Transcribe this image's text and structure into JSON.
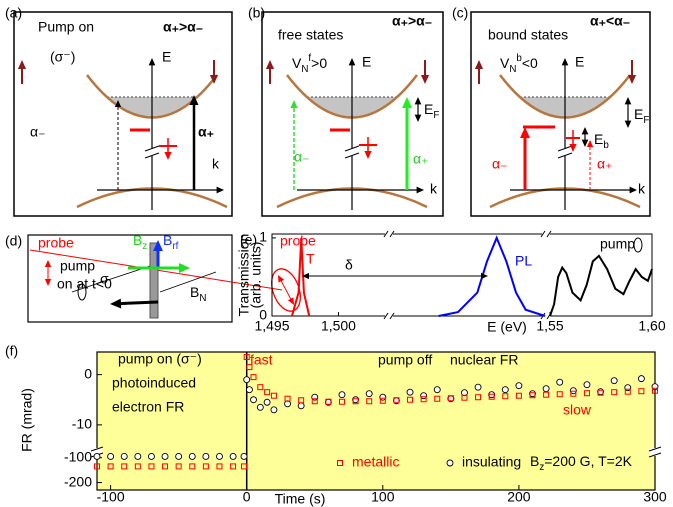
{
  "panels": [
    {
      "label": "(a)",
      "title": "Pump on",
      "condition": "α₊>α₋",
      "polarization": "(σ⁻)",
      "axis_e": "E",
      "axis_k": "k",
      "alpha_minus": "α₋",
      "alpha_plus": "α₊"
    },
    {
      "label": "(b)",
      "title": "free states",
      "condition": "α₊>α₋",
      "potential": {
        "t": "V",
        "sub": "N",
        "sup": "f",
        "rest": ">0"
      },
      "axis_e": "E",
      "axis_k": "k",
      "fermi": {
        "t": "E",
        "sub": "F"
      },
      "alpha_minus": "α₋",
      "alpha_plus": "α₊"
    },
    {
      "label": "(c)",
      "title": "bound states",
      "condition": "α₊<α₋",
      "potential": {
        "t": "V",
        "sub": "N",
        "sup": "b",
        "rest": "<0"
      },
      "axis_e": "E",
      "axis_k": "k",
      "fermi": {
        "t": "E",
        "sub": "F"
      },
      "binding": {
        "t": "E",
        "sub": "b"
      },
      "alpha_minus": "α₋",
      "alpha_plus": "α₊"
    },
    {
      "label": "(d)",
      "probe": "probe",
      "pump": "pump",
      "pump_time": "on at t<0",
      "sigma": "σ",
      "bz": {
        "t": "B",
        "sub": "z"
      },
      "brf": {
        "t": "B",
        "sub": "rf"
      },
      "bn": {
        "t": "B",
        "sub": "N"
      }
    }
  ],
  "chart_data": [
    {
      "type": "line",
      "label": "(e)",
      "xlabel": "E (eV)",
      "ylabel": [
        "Transmission",
        "(arb. units)"
      ],
      "annotations": [
        "probe",
        "T",
        "δ",
        "PL",
        "pump"
      ],
      "x_segments": [
        {
          "xlim": [
            1.495,
            1.5035
          ],
          "xticks": [
            {
              "value": 1.495,
              "label": "1,495"
            },
            {
              "value": 1.5,
              "label": "1,500"
            }
          ]
        },
        {
          "xlim": [
            1.51,
            1.525
          ],
          "xticks": []
        },
        {
          "xlim": [
            1.55,
            1.6
          ],
          "xticks": [
            {
              "value": 1.55,
              "label": "1,55"
            },
            {
              "value": 1.6,
              "label": "1,60"
            }
          ]
        }
      ],
      "ylim": [
        0,
        1.05
      ],
      "yticks": [
        0,
        1
      ],
      "series": [
        {
          "name": "T",
          "color": "#ff0000",
          "x": [
            1.4965,
            1.497,
            1.4972,
            1.4974,
            1.4978
          ],
          "values": [
            0,
            0.3,
            1,
            0.3,
            0
          ]
        },
        {
          "name": "PL",
          "color": "#0000ff",
          "x": [
            1.514,
            1.516,
            1.518,
            1.519,
            1.52,
            1.521,
            1.522,
            1.523,
            1.525
          ],
          "values": [
            0,
            0.05,
            0.3,
            0.7,
            1,
            0.7,
            0.3,
            0.08,
            0
          ]
        },
        {
          "name": "pump",
          "color": "#000000",
          "x": [
            1.55,
            1.552,
            1.554,
            1.556,
            1.558,
            1.561,
            1.565,
            1.568,
            1.571,
            1.574,
            1.578,
            1.582,
            1.586,
            1.589,
            1.592,
            1.595,
            1.598,
            1.6
          ],
          "values": [
            0,
            0.15,
            0.5,
            0.62,
            0.55,
            0.3,
            0.2,
            0.4,
            0.7,
            0.77,
            0.6,
            0.35,
            0.28,
            0.45,
            0.6,
            0.5,
            0.45,
            0.6
          ]
        }
      ]
    },
    {
      "type": "scatter",
      "label": "(f)",
      "xlabel": "Time (s)",
      "ylabel": "FR (mrad)",
      "annotations": [
        "pump on (σ⁻)",
        "photoinduced",
        "electron FR",
        "fast",
        "pump off",
        "nuclear FR",
        "slow",
        {
          "t": "B",
          "sub": "z",
          "rest": "=200 G, T=2K"
        }
      ],
      "xlim": [
        -110,
        300
      ],
      "xticks": [
        -100,
        0,
        100,
        200,
        300
      ],
      "y_segments": [
        {
          "ylim": [
            -15,
            4.5
          ],
          "yticks": [
            0,
            -10
          ]
        },
        {
          "ylim": [
            -230,
            -85
          ],
          "yticks": [
            -100,
            -200
          ]
        }
      ],
      "background": "#ffff99",
      "x": [
        -110,
        -100,
        -90,
        -80,
        -70,
        -60,
        -50,
        -40,
        -30,
        -20,
        -10,
        -2,
        0,
        2,
        5,
        10,
        15,
        20,
        30,
        40,
        50,
        60,
        70,
        80,
        90,
        100,
        110,
        120,
        130,
        140,
        150,
        160,
        170,
        180,
        190,
        200,
        210,
        220,
        230,
        240,
        250,
        260,
        270,
        280,
        290,
        300
      ],
      "series": [
        {
          "name": "metallic",
          "color": "#ff0000",
          "marker": "square",
          "values": [
            -135,
            -135,
            -135,
            -135,
            -135,
            -135,
            -135,
            -135,
            -135,
            -135,
            -135,
            -135,
            3.5,
            1.5,
            -0.5,
            -2.5,
            -3.5,
            -4.2,
            -4.8,
            -5.1,
            -5.3,
            -5.4,
            -5.4,
            -5.3,
            -5.3,
            -5.2,
            -5.1,
            -5.0,
            -4.9,
            -4.8,
            -4.7,
            -4.6,
            -4.5,
            -4.4,
            -4.3,
            -4.2,
            -4.1,
            -4.0,
            -3.9,
            -3.8,
            -3.7,
            -3.6,
            -3.5,
            -3.4,
            -3.3,
            -3.2
          ]
        },
        {
          "name": "insulating",
          "color": "#000000",
          "marker": "circle",
          "values": [
            -95,
            -95,
            -95,
            -95,
            -95,
            -95,
            -95,
            -95,
            -95,
            -95,
            -95,
            -95,
            -1,
            -3,
            -5,
            -6.5,
            -5.5,
            -7,
            -5.8,
            -6.2,
            -4.5,
            -5.5,
            -4,
            -5,
            -3.8,
            -4.5,
            -5.2,
            -3.5,
            -4.2,
            -3,
            -4.8,
            -3.6,
            -2.5,
            -4,
            -3,
            -2.2,
            -3.8,
            -2.8,
            -1.5,
            -3.2,
            -2,
            -3.4,
            -1.2,
            -2.6,
            -0.8,
            -2.4
          ]
        }
      ]
    }
  ]
}
